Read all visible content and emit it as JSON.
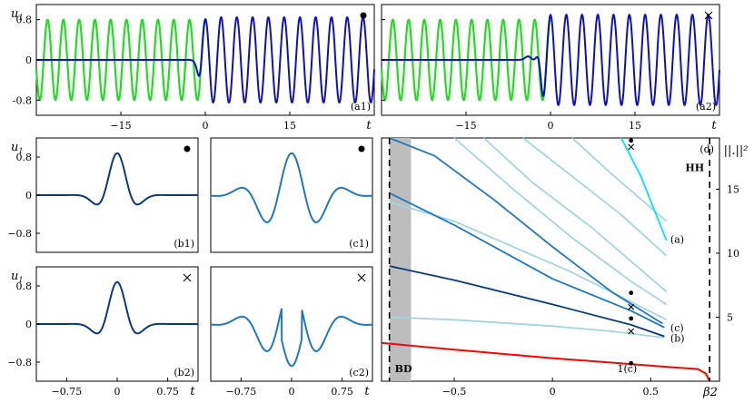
{
  "chart_data": [
    {
      "id": "a1",
      "type": "line",
      "panel_label": "(a1)",
      "marker": "dot",
      "xlabel": "t",
      "ylabel": "u1",
      "xlim": [
        -30,
        30
      ],
      "ylim": [
        -1.1,
        1.1
      ],
      "xticks": [
        -15,
        0,
        15
      ],
      "yticks": [
        0.8,
        0,
        -0.8
      ],
      "ytick_labels": [
        "0.8",
        "0",
        "-0.8"
      ],
      "xtick_labels": [
        "−15",
        "0",
        "15"
      ],
      "series": [
        {
          "role": "carrier",
          "color": "#22dd22",
          "amplitude": 0.8,
          "period": 2.8,
          "x_range": [
            -30,
            0
          ]
        },
        {
          "role": "solution",
          "color": "#1111bb",
          "amplitude": 0.85,
          "period": 2.8,
          "front": -1.0,
          "x_range": [
            -30,
            30
          ]
        }
      ]
    },
    {
      "id": "a2",
      "type": "line",
      "panel_label": "(a2)",
      "marker": "cross",
      "xlabel": "t",
      "xlim": [
        -30,
        30
      ],
      "ylim": [
        -1.1,
        1.1
      ],
      "xticks": [
        -15,
        0,
        15
      ],
      "yticks": [
        0.8,
        0,
        -0.8
      ],
      "xtick_labels": [
        "−15",
        "0",
        "15"
      ],
      "series": [
        {
          "role": "carrier",
          "color": "#22dd22",
          "amplitude": 0.8,
          "period": 2.8,
          "x_range": [
            -30,
            0
          ]
        },
        {
          "role": "solution",
          "color": "#1111bb",
          "amplitude": 0.9,
          "period": 2.8,
          "front": -1.8,
          "x_range": [
            -30,
            30
          ]
        }
      ]
    },
    {
      "id": "b1",
      "type": "line",
      "panel_label": "(b1)",
      "marker": "dot",
      "ylabel": "u1",
      "xlim": [
        -1.2,
        1.2
      ],
      "ylim": [
        -1.2,
        1.2
      ],
      "yticks": [
        0.8,
        0,
        -0.8
      ],
      "ytick_labels": [
        "0.8",
        "0",
        "−0.8"
      ],
      "series": [
        {
          "color": "#0a3a7a",
          "width": 0.28,
          "k": 7.85,
          "amp": 0.88,
          "phase": 0
        }
      ]
    },
    {
      "id": "c1",
      "type": "line",
      "panel_label": "(c1)",
      "marker": "dot",
      "xlim": [
        -1.2,
        1.2
      ],
      "ylim": [
        -1.2,
        1.2
      ],
      "series": [
        {
          "color": "#1f78c0",
          "width": 0.45,
          "k": 7.85,
          "amp": 0.88,
          "phase": 0
        }
      ]
    },
    {
      "id": "b2",
      "type": "line",
      "panel_label": "(b2)",
      "marker": "cross",
      "xlabel": "t",
      "ylabel": "u1",
      "xlim": [
        -1.2,
        1.2
      ],
      "ylim": [
        -1.2,
        1.2
      ],
      "xticks": [
        -0.75,
        0,
        0.75
      ],
      "xtick_labels": [
        "−0.75",
        "0",
        "0.75"
      ],
      "yticks": [
        0.8,
        0,
        -0.8
      ],
      "ytick_labels": [
        "0.8",
        "0",
        "−0.8"
      ],
      "series": [
        {
          "color": "#0a3a7a",
          "width": 0.28,
          "k": 7.85,
          "amp": 0.88,
          "phase": 0
        }
      ]
    },
    {
      "id": "c2",
      "type": "line",
      "panel_label": "(c2)",
      "marker": "cross",
      "xlabel": "t",
      "xlim": [
        -1.2,
        1.2
      ],
      "ylim": [
        -1.2,
        1.2
      ],
      "xticks": [
        -0.75,
        0,
        0.75
      ],
      "xtick_labels": [
        "−0.75",
        "0",
        "0.75"
      ],
      "series": [
        {
          "color": "#1f78c0",
          "width": 0.45,
          "k": 7.85,
          "amp": 0.88,
          "phase": 3.1416
        }
      ]
    },
    {
      "id": "d",
      "type": "line",
      "panel_label": "(d)",
      "xlabel": "β2",
      "ylabel": "||.||²",
      "xlim": [
        -0.87,
        0.85
      ],
      "ylim": [
        0,
        19
      ],
      "xticks": [
        -0.5,
        0,
        0.5
      ],
      "xtick_labels": [
        "−0.5",
        "0",
        "0.5"
      ],
      "yticks": [
        5,
        10,
        15
      ],
      "ytick_labels": [
        "5",
        "10",
        "15"
      ],
      "annotations": [
        "BD",
        "HH",
        "(a)",
        "(b)",
        "(c)",
        "1(c)"
      ],
      "band": [
        -0.83,
        -0.72
      ],
      "vlines": [
        -0.83,
        0.8
      ],
      "series": [
        {
          "name": "red",
          "color": "#ff0000",
          "x": [
            -0.87,
            -0.6,
            -0.3,
            0.0,
            0.3,
            0.6,
            0.74,
            0.78,
            0.8
          ],
          "y": [
            3.0,
            2.6,
            2.2,
            1.8,
            1.45,
            1.1,
            0.95,
            0.6,
            0.0
          ]
        },
        {
          "name": "b",
          "color": "#0a3a7a",
          "x": [
            -0.83,
            -0.5,
            0.0,
            0.4,
            0.57
          ],
          "y": [
            9.0,
            7.9,
            6.0,
            4.4,
            3.5
          ]
        },
        {
          "name": "c",
          "color": "#1f78c0",
          "x": [
            -0.83,
            -0.5,
            0.0,
            0.4,
            0.57
          ],
          "y": [
            14.7,
            12.2,
            8.0,
            5.5,
            4.2
          ]
        },
        {
          "name": "c-upper",
          "color": "#1f78c0",
          "x": [
            -0.83,
            -0.6,
            -0.3,
            0.0,
            0.3,
            0.56
          ],
          "y": [
            19.0,
            17.6,
            14.2,
            10.5,
            7.0,
            4.5
          ]
        },
        {
          "name": "light-1",
          "color": "#a6d3de",
          "x": [
            -0.83,
            -0.5,
            0.0,
            0.3,
            0.57
          ],
          "y": [
            5.0,
            4.8,
            4.3,
            3.9,
            3.4
          ]
        },
        {
          "name": "light-2",
          "color": "#a6d3de",
          "x": [
            -0.83,
            -0.5,
            -0.2,
            0.1,
            0.4,
            0.58
          ],
          "y": [
            14.0,
            12.5,
            10.5,
            8.5,
            6.2,
            4.8
          ]
        },
        {
          "name": "light-3",
          "color": "#a6d3de",
          "x": [
            -0.5,
            -0.2,
            0.1,
            0.4,
            0.58
          ],
          "y": [
            19.0,
            15.0,
            11.2,
            7.8,
            6.0
          ]
        },
        {
          "name": "light-4",
          "color": "#a6d3de",
          "x": [
            -0.35,
            -0.1,
            0.2,
            0.58
          ],
          "y": [
            19.0,
            15.5,
            12.0,
            7.0
          ]
        },
        {
          "name": "light-5",
          "color": "#a6d3de",
          "x": [
            -0.15,
            0.1,
            0.35,
            0.58
          ],
          "y": [
            19.0,
            16.0,
            13.0,
            9.8
          ]
        },
        {
          "name": "light-6",
          "color": "#a6d3de",
          "x": [
            0.1,
            0.3,
            0.58
          ],
          "y": [
            19.0,
            16.2,
            12.5
          ]
        },
        {
          "name": "cyan",
          "color": "#00e0ff",
          "x": [
            0.35,
            0.45,
            0.58
          ],
          "y": [
            19.0,
            16.0,
            11.0
          ]
        }
      ],
      "points": [
        {
          "x": 0.4,
          "y": 18.8,
          "kind": "dot"
        },
        {
          "x": 0.4,
          "y": 18.3,
          "kind": "cross"
        },
        {
          "x": 0.4,
          "y": 6.9,
          "kind": "dot"
        },
        {
          "x": 0.4,
          "y": 5.8,
          "kind": "cross"
        },
        {
          "x": 0.4,
          "y": 4.9,
          "kind": "dot"
        },
        {
          "x": 0.4,
          "y": 3.9,
          "kind": "cross"
        },
        {
          "x": 0.4,
          "y": 1.4,
          "kind": "dot"
        }
      ]
    }
  ]
}
